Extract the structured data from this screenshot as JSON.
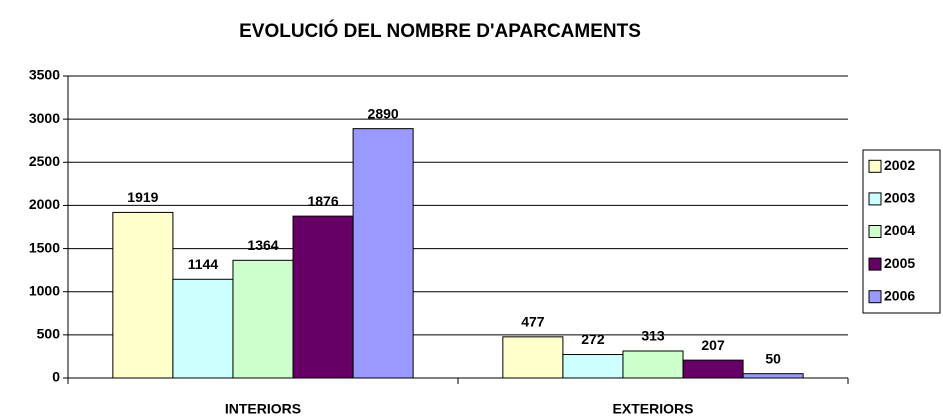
{
  "chart_data": {
    "type": "bar",
    "title": "EVOLUCIÓ DEL NOMBRE D'APARCAMENTS",
    "categories": [
      "INTERIORS",
      "EXTERIORS"
    ],
    "series": [
      {
        "name": "2002",
        "color": "#ffffcc",
        "values": [
          1919,
          477
        ]
      },
      {
        "name": "2003",
        "color": "#ccffff",
        "values": [
          1144,
          272
        ]
      },
      {
        "name": "2004",
        "color": "#ccffcc",
        "values": [
          1364,
          313
        ]
      },
      {
        "name": "2005",
        "color": "#660066",
        "values": [
          1876,
          207
        ]
      },
      {
        "name": "2006",
        "color": "#9999ff",
        "values": [
          2890,
          50
        ]
      }
    ],
    "ylim": [
      0,
      3500
    ],
    "yticks": [
      0,
      500,
      1000,
      1500,
      2000,
      2500,
      3000,
      3500
    ],
    "grid": true,
    "legend": "right"
  }
}
